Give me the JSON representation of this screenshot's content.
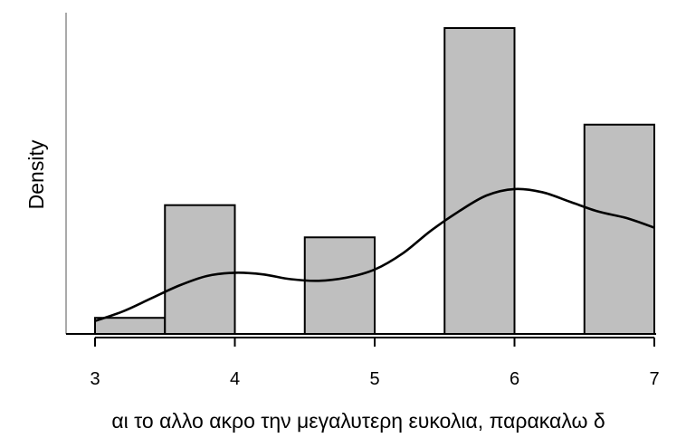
{
  "chart_data": {
    "type": "bar",
    "subtype": "histogram with density curve",
    "title": "",
    "xlabel": "αι το αλλο ακρο την μεγαλυτερη ευκολια, παρακαλω δ",
    "ylabel": "Density",
    "xlim": [
      3,
      7
    ],
    "ylim": [
      0,
      0.95
    ],
    "x_ticks": [
      "3",
      "4",
      "5",
      "6",
      "7"
    ],
    "y_ticks_shown": false,
    "grid": false,
    "legend": "none",
    "bins": [
      {
        "start": 3.0,
        "end": 3.5,
        "density": 0.05
      },
      {
        "start": 3.5,
        "end": 4.0,
        "density": 0.4
      },
      {
        "start": 4.0,
        "end": 4.5,
        "density": 0.0
      },
      {
        "start": 4.5,
        "end": 5.0,
        "density": 0.3
      },
      {
        "start": 5.0,
        "end": 5.5,
        "density": 0.0
      },
      {
        "start": 5.5,
        "end": 6.0,
        "density": 0.95
      },
      {
        "start": 6.0,
        "end": 6.5,
        "density": 0.0
      },
      {
        "start": 6.5,
        "end": 7.0,
        "density": 0.65
      }
    ],
    "density_curve": {
      "x": [
        3.0,
        3.2,
        3.4,
        3.6,
        3.8,
        4.0,
        4.2,
        4.4,
        4.6,
        4.8,
        5.0,
        5.2,
        5.4,
        5.6,
        5.8,
        6.0,
        6.2,
        6.4,
        6.6,
        6.8,
        7.0
      ],
      "y": [
        0.04,
        0.07,
        0.11,
        0.15,
        0.18,
        0.19,
        0.185,
        0.17,
        0.165,
        0.175,
        0.2,
        0.25,
        0.32,
        0.38,
        0.43,
        0.45,
        0.44,
        0.41,
        0.38,
        0.36,
        0.33
      ]
    },
    "colors": {
      "bar_fill": "#bfbfbf",
      "bar_stroke": "#000000",
      "curve": "#000000",
      "axis": "#000000"
    }
  }
}
